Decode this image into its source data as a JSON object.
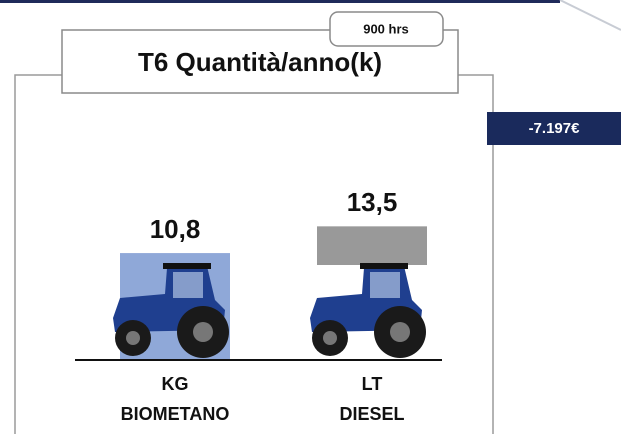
{
  "chart_data": {
    "type": "bar",
    "title": "T6 Quantità/anno(k)",
    "annotations": [
      "900 hrs",
      "-7.197€"
    ],
    "categories": [
      [
        "KG",
        "BIOMETANO"
      ],
      [
        "LT",
        "DIESEL"
      ]
    ],
    "values": [
      10.8,
      13.5
    ],
    "value_labels": [
      "10,8",
      "13,5"
    ],
    "colors": [
      "#8fa8d8",
      "#999999"
    ]
  }
}
